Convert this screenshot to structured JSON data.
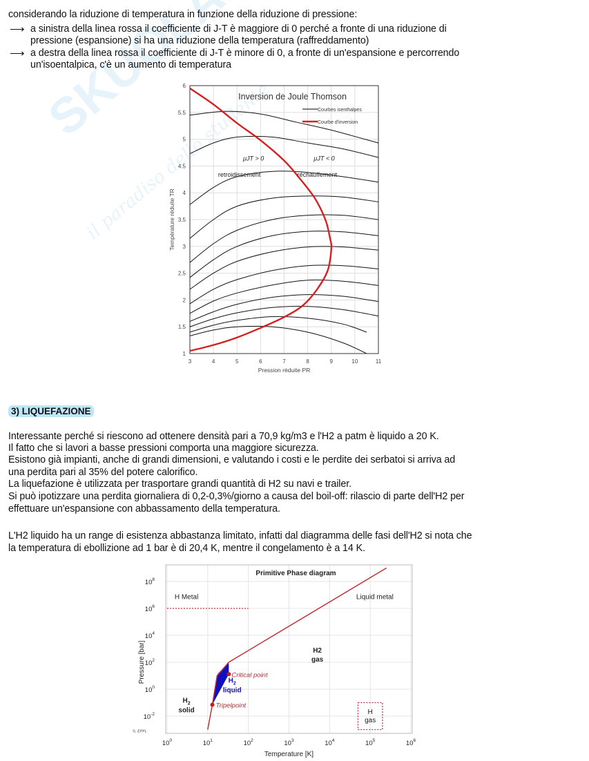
{
  "watermark": {
    "brand": "SKUOLA.NET",
    "tagline": "il paradiso dello studente"
  },
  "intro": {
    "line1": "considerando la riduzione di temperatura in funzione della riduzione di pressione:",
    "bullets": [
      {
        "arrow": "⟶",
        "lines": [
          "a sinistra della linea rossa il coefficiente di J-T è maggiore di 0 perché a fronte di una riduzione di",
          "pressione (espansione) si ha una riduzione della temperatura (raffreddamento)"
        ]
      },
      {
        "arrow": "⟶",
        "lines": [
          "a destra della linea rossa il coefficiente di J-T è minore di 0, a fronte di un'espansione e percorrendo",
          "un'isoentalpica, c'è un aumento di temperatura"
        ]
      }
    ]
  },
  "section": {
    "title": "3) LIQUEFAZIONE",
    "paragraph1": [
      "Interessante perché si riescono ad ottenere densità pari a 70,9 kg/m3 e l'H2 a patm è liquido a 20 K.",
      "Il fatto che si lavori a basse pressioni comporta una maggiore sicurezza.",
      "Esistono già impianti, anche di grandi dimensioni, e valutando i costi e le perdite dei serbatoi si arriva ad",
      "una perdita pari al 35% del potere calorifico.",
      "La liquefazione è utilizzata per trasportare grandi quantità di H2 su navi e trailer.",
      "Si può ipotizzare una perdita giornaliera di 0,2-0,3%/giorno a causa del boil-off: rilascio di parte dell'H2 per",
      "effettuare un'espansione con abbassamento della temperatura."
    ],
    "paragraph2": [
      "L'H2 liquido ha un range di esistenza abbastanza limitato, infatti dal diagramma delle fasi dell'H2 si nota che",
      "la temperatura di ebollizione ad 1 bar è di 20,4 K, mentre il congelamento è a 14 K."
    ]
  },
  "chart_data": [
    {
      "type": "line",
      "title": "Inversion de Joule Thomson",
      "xlabel": "Pression réduite PR",
      "ylabel": "Température réduite TR",
      "xlim": [
        3,
        11
      ],
      "ylim": [
        1,
        6
      ],
      "xticks": [
        "3",
        "4",
        "5",
        "6",
        "7",
        "8",
        "9",
        "10",
        "11"
      ],
      "yticks": [
        "1",
        "1.5",
        "2",
        "2.5",
        "3",
        "3.5",
        "4",
        "4.5",
        "5",
        "5.5",
        "6"
      ],
      "grid": true,
      "legend": {
        "placement": "top-right",
        "entries": [
          {
            "label": "Courbes isenthalpes",
            "color": "#000000"
          },
          {
            "label": "Courbe d'inversion",
            "color": "#d42020"
          }
        ]
      },
      "annotations": [
        {
          "text": "μJT > 0",
          "at": [
            5.7,
            4.6
          ]
        },
        {
          "text": "retroidissement",
          "at": [
            5.1,
            4.3
          ]
        },
        {
          "text": "μJT < 0",
          "at": [
            8.7,
            4.6
          ]
        },
        {
          "text": "réchauffement",
          "at": [
            8.4,
            4.3
          ]
        }
      ],
      "isenthalps": [
        [
          [
            3,
            5.45
          ],
          [
            4.5,
            5.52
          ],
          [
            6,
            5.47
          ],
          [
            7.5,
            5.32
          ],
          [
            9,
            5.17
          ],
          [
            11,
            4.93
          ]
        ],
        [
          [
            3,
            4.73
          ],
          [
            4,
            4.93
          ],
          [
            5,
            5.04
          ],
          [
            6.5,
            5.04
          ],
          [
            8,
            4.93
          ],
          [
            9.5,
            4.82
          ],
          [
            11,
            4.66
          ]
        ],
        [
          [
            3,
            3.78
          ],
          [
            4,
            4.1
          ],
          [
            5,
            4.3
          ],
          [
            6.5,
            4.4
          ],
          [
            8,
            4.38
          ],
          [
            9.5,
            4.3
          ],
          [
            11,
            4.2
          ]
        ],
        [
          [
            3,
            3.15
          ],
          [
            4,
            3.5
          ],
          [
            5,
            3.75
          ],
          [
            6.5,
            3.9
          ],
          [
            8,
            3.94
          ],
          [
            9.5,
            3.92
          ],
          [
            11,
            3.83
          ]
        ],
        [
          [
            3,
            2.7
          ],
          [
            4,
            3.05
          ],
          [
            5,
            3.3
          ],
          [
            6.5,
            3.5
          ],
          [
            8,
            3.58
          ],
          [
            9.5,
            3.58
          ],
          [
            11,
            3.5
          ]
        ],
        [
          [
            3,
            2.42
          ],
          [
            4,
            2.75
          ],
          [
            5,
            3.0
          ],
          [
            6.5,
            3.2
          ],
          [
            8,
            3.28
          ],
          [
            9.5,
            3.27
          ],
          [
            11,
            3.2
          ]
        ],
        [
          [
            3,
            2.2
          ],
          [
            4,
            2.5
          ],
          [
            5,
            2.72
          ],
          [
            6.5,
            2.9
          ],
          [
            8,
            2.99
          ],
          [
            9.5,
            2.99
          ],
          [
            11,
            2.93
          ]
        ],
        [
          [
            3,
            1.93
          ],
          [
            4,
            2.2
          ],
          [
            5,
            2.38
          ],
          [
            6.5,
            2.55
          ],
          [
            8,
            2.64
          ],
          [
            9.5,
            2.64
          ],
          [
            11,
            2.58
          ]
        ],
        [
          [
            3,
            1.75
          ],
          [
            4,
            1.98
          ],
          [
            5,
            2.13
          ],
          [
            6.5,
            2.28
          ],
          [
            8,
            2.37
          ],
          [
            9.5,
            2.35
          ],
          [
            11,
            2.27
          ]
        ],
        [
          [
            3,
            1.6
          ],
          [
            4,
            1.78
          ],
          [
            5,
            1.92
          ],
          [
            6.5,
            2.05
          ],
          [
            8,
            2.1
          ],
          [
            9.5,
            2.07
          ],
          [
            11,
            1.97
          ]
        ],
        [
          [
            3,
            1.5
          ],
          [
            4,
            1.65
          ],
          [
            5,
            1.76
          ],
          [
            6.5,
            1.86
          ],
          [
            8,
            1.88
          ],
          [
            9.5,
            1.82
          ],
          [
            11,
            1.7
          ]
        ],
        [
          [
            3,
            1.4
          ],
          [
            4,
            1.53
          ],
          [
            5,
            1.62
          ],
          [
            6.5,
            1.69
          ],
          [
            8,
            1.66
          ],
          [
            9.5,
            1.55
          ],
          [
            10.5,
            1.4
          ]
        ],
        [
          [
            3,
            1.33
          ],
          [
            4,
            1.44
          ],
          [
            5,
            1.5
          ],
          [
            6.5,
            1.5
          ],
          [
            8,
            1.4
          ],
          [
            9.5,
            1.2
          ],
          [
            10.5,
            1.0
          ]
        ]
      ],
      "inversion_curve": [
        [
          3,
          5.95
        ],
        [
          4,
          5.65
        ],
        [
          5,
          5.3
        ],
        [
          6,
          4.98
        ],
        [
          7,
          4.6
        ],
        [
          7.6,
          4.3
        ],
        [
          8.3,
          3.9
        ],
        [
          8.75,
          3.5
        ],
        [
          8.95,
          3.15
        ],
        [
          9,
          2.95
        ],
        [
          8.85,
          2.55
        ],
        [
          8.4,
          2.2
        ],
        [
          7.8,
          1.9
        ],
        [
          7,
          1.68
        ],
        [
          6,
          1.48
        ],
        [
          5,
          1.3
        ],
        [
          4,
          1.16
        ],
        [
          3,
          1.05
        ]
      ]
    },
    {
      "type": "line",
      "title": "Primitive Phase diagram",
      "xlabel": "Temperature [K]",
      "ylabel": "Pressure [bar]",
      "xscale": "log",
      "yscale": "log",
      "xticks": [
        {
          "base": "10",
          "exp": "0"
        },
        {
          "base": "10",
          "exp": "1"
        },
        {
          "base": "10",
          "exp": "2"
        },
        {
          "base": "10",
          "exp": "3"
        },
        {
          "base": "10",
          "exp": "4"
        },
        {
          "base": "10",
          "exp": "5"
        },
        {
          "base": "10",
          "exp": "6"
        }
      ],
      "yticks": [
        {
          "base": "10",
          "exp": "-2"
        },
        {
          "base": "10",
          "exp": "0"
        },
        {
          "base": "10",
          "exp": "2"
        },
        {
          "base": "10",
          "exp": "4"
        },
        {
          "base": "10",
          "exp": "6"
        },
        {
          "base": "10",
          "exp": "8"
        }
      ],
      "grid": true,
      "credit": "©, EPFL",
      "phase_line": [
        [
          10,
          0.001
        ],
        [
          13,
          0.07
        ],
        [
          17,
          10
        ],
        [
          33,
          100
        ],
        [
          250000,
          1000000000
        ]
      ],
      "liquid_region": [
        [
          13,
          0.07
        ],
        [
          16,
          3
        ],
        [
          18,
          15
        ],
        [
          25,
          40
        ],
        [
          33,
          90
        ],
        [
          33,
          13
        ]
      ],
      "points": [
        {
          "label": "Critical point",
          "T": 33,
          "p": 13
        },
        {
          "label": "Tripelpoint",
          "T": 13,
          "p": 0.07
        }
      ],
      "metal_boundary": {
        "p": 1000000,
        "T": [
          1,
          100
        ]
      },
      "h_gas_box": {
        "T": [
          50000,
          200000
        ],
        "p": [
          0.001,
          0.1
        ]
      },
      "regions": [
        {
          "label": "H Metal",
          "T": 3,
          "p": 5000000
        },
        {
          "label": "Liquid metal",
          "T": 130000,
          "p": 5000000
        },
        {
          "label": "H2 gas",
          "T": 5000,
          "p": 200,
          "sub": true
        },
        {
          "label": "H2 liquid",
          "T": 40,
          "p": 1.5,
          "sub": true
        },
        {
          "label": "H2 solid",
          "T": 3,
          "p": 0.05,
          "sub": true
        },
        {
          "label": "H gas",
          "T": 100000,
          "p": 0.01
        }
      ],
      "colors": {
        "line": "#c0303a",
        "liquid": "#1010c0",
        "metal_boundary": "#c0303a"
      }
    }
  ]
}
